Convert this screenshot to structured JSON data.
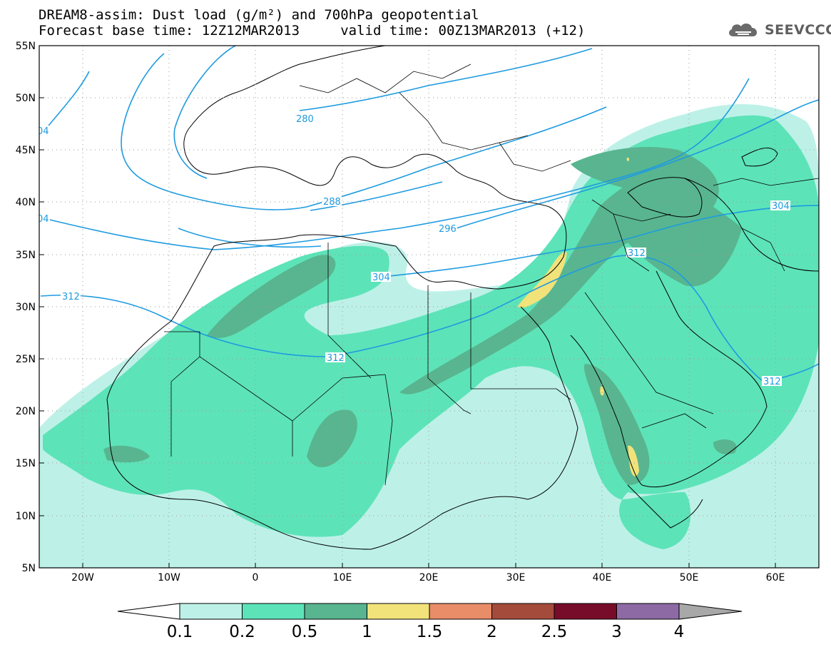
{
  "title": {
    "line1": "DREAM8-assim: Dust load (g/m²) and 700hPa geopotential",
    "line2": "Forecast base time: 12Z12MAR2013     valid time: 00Z13MAR2013 (+12)"
  },
  "logo": {
    "text": "SEEVCCC",
    "icon": "cloud-logo-icon"
  },
  "map": {
    "projection": "lat-lon",
    "lon_range": [
      -25,
      65
    ],
    "lat_range": [
      5,
      55
    ],
    "lat_labels": [
      "55N",
      "50N",
      "45N",
      "40N",
      "35N",
      "30N",
      "25N",
      "20N",
      "15N",
      "10N",
      "5N"
    ],
    "lon_labels": [
      "20W",
      "10W",
      "0",
      "10E",
      "20E",
      "30E",
      "40E",
      "50E",
      "60E"
    ],
    "grid": "dotted",
    "contour_color": "#1e9be0",
    "contour_labels": [
      "04",
      "280",
      "288",
      "04",
      "296",
      "304",
      "312",
      "304",
      "312",
      "312",
      "312"
    ]
  },
  "colorbar": {
    "levels": [
      "0.1",
      "0.2",
      "0.5",
      "1",
      "1.5",
      "2",
      "2.5",
      "3",
      "4"
    ],
    "colors": [
      "#bdf1e8",
      "#5de3b8",
      "#58b58f",
      "#f1e27a",
      "#e88d68",
      "#a44b3c",
      "#770b2a",
      "#8d6aa3",
      "#a8a8a8"
    ]
  }
}
